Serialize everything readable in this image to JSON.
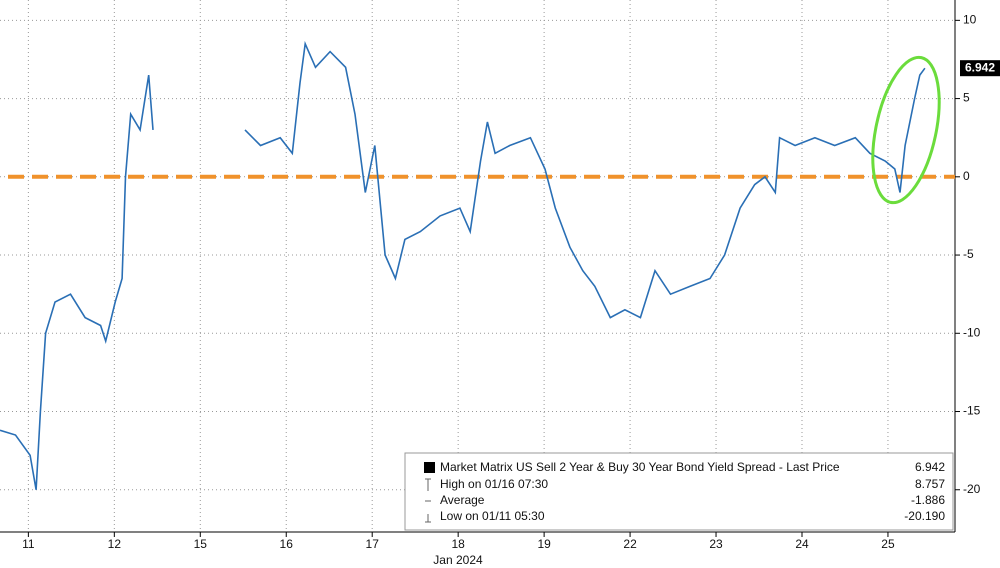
{
  "chart_data": {
    "type": "line",
    "x_sublabel": "Jan 2024",
    "xlim": [
      -0.33,
      10.78
    ],
    "xticks": [
      {
        "value": 0,
        "label": "11"
      },
      {
        "value": 1,
        "label": "12"
      },
      {
        "value": 2,
        "label": "15"
      },
      {
        "value": 3,
        "label": "16"
      },
      {
        "value": 4,
        "label": "17"
      },
      {
        "value": 5,
        "label": "18"
      },
      {
        "value": 6,
        "label": "19"
      },
      {
        "value": 7,
        "label": "22"
      },
      {
        "value": 8,
        "label": "23"
      },
      {
        "value": 9,
        "label": "24"
      },
      {
        "value": 10,
        "label": "25"
      }
    ],
    "ylim": [
      -22.7,
      11.3
    ],
    "yticks": [
      10,
      5,
      0,
      -5,
      -10,
      -15,
      -20
    ],
    "grid": true,
    "hline": {
      "value": 0,
      "color": "#f0922b"
    },
    "x": [
      -0.33,
      -0.15,
      0.02,
      0.09,
      0.14,
      0.2,
      0.31,
      0.49,
      0.66,
      0.84,
      0.9,
      1.01,
      1.09,
      1.13,
      1.19,
      1.3,
      1.4,
      1.45,
      2.0,
      2.52,
      2.7,
      2.93,
      3.07,
      3.16,
      3.22,
      3.34,
      3.51,
      3.69,
      3.8,
      3.92,
      4.03,
      4.15,
      4.27,
      4.38,
      4.56,
      4.79,
      5.02,
      5.14,
      5.26,
      5.34,
      5.43,
      5.6,
      5.84,
      6.01,
      6.13,
      6.3,
      6.45,
      6.59,
      6.77,
      6.94,
      7.12,
      7.29,
      7.47,
      7.7,
      7.93,
      8.1,
      8.28,
      8.45,
      8.57,
      8.69,
      8.74,
      8.92,
      9.15,
      9.38,
      9.62,
      9.79,
      9.97,
      10.08,
      10.14,
      10.2,
      10.31,
      10.37,
      10.43
    ],
    "series": [
      {
        "name": "Market Matrix US Sell 2 Year & Buy 30 Year Bond Yield Spread - Last Price",
        "color": "#2a6fb5",
        "values": [
          -16.2,
          -16.5,
          -17.8,
          -20,
          -15,
          -10,
          -8,
          -7.5,
          -9,
          -9.5,
          -10.5,
          -8,
          -6.5,
          0,
          4,
          3,
          6.5,
          3,
          null,
          3,
          2,
          2.5,
          1.5,
          6,
          8.5,
          7,
          8,
          7,
          4,
          -1,
          2,
          -5,
          -6.5,
          -4,
          -3.5,
          -2.5,
          -2,
          -3.5,
          1,
          3.5,
          1.5,
          2,
          2.5,
          0.5,
          -2,
          -4.5,
          -6,
          -7,
          -9,
          -8.5,
          -9,
          -6,
          -7.5,
          -7,
          -6.5,
          -5,
          -2,
          -0.5,
          0,
          -1,
          2.5,
          2,
          2.5,
          2,
          2.5,
          1.5,
          1,
          0.5,
          -1,
          2,
          5,
          6.5,
          6.942
        ]
      }
    ],
    "legend": {
      "last_price": "6.942",
      "rows": [
        {
          "label": "High on 01/16 07:30",
          "value": "8.757"
        },
        {
          "label": "Average",
          "value": "-1.886"
        },
        {
          "label": "Low on 01/11 05:30",
          "value": "-20.190"
        }
      ]
    }
  }
}
